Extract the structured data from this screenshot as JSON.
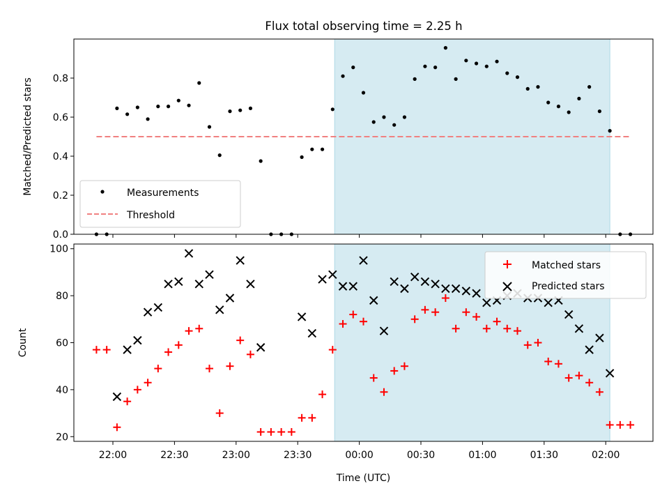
{
  "title": "Flux total observing time = 2.25 h",
  "chart_data": [
    {
      "type": "scatter",
      "panel": "top",
      "ylabel": "Matched/Predicted stars",
      "ylim": [
        0,
        1.0
      ],
      "yticks": [
        0.0,
        0.2,
        0.4,
        0.6,
        0.8
      ],
      "ytick_labels": [
        "0.0",
        "0.2",
        "0.4",
        "0.6",
        "0.8"
      ],
      "legend_position": "lower-left",
      "shaded_interval": [
        "23:48",
        "02:02"
      ],
      "shaded_color": "#add8e6",
      "series": [
        {
          "name": "Measurements",
          "marker": "dot",
          "color": "#000000",
          "x": [
            "21:52",
            "21:57",
            "22:02",
            "22:07",
            "22:12",
            "22:17",
            "22:22",
            "22:27",
            "22:32",
            "22:37",
            "22:42",
            "22:47",
            "22:52",
            "22:57",
            "23:02",
            "23:07",
            "23:12",
            "23:17",
            "23:22",
            "23:27",
            "23:32",
            "23:37",
            "23:42",
            "23:47",
            "23:52",
            "23:57",
            "00:02",
            "00:07",
            "00:12",
            "00:17",
            "00:22",
            "00:27",
            "00:32",
            "00:37",
            "00:42",
            "00:47",
            "00:52",
            "00:57",
            "01:02",
            "01:07",
            "01:12",
            "01:17",
            "01:22",
            "01:27",
            "01:32",
            "01:37",
            "01:42",
            "01:47",
            "01:52",
            "01:57",
            "02:02",
            "02:07",
            "02:12"
          ],
          "y": [
            0.0,
            0.0,
            0.645,
            0.615,
            0.65,
            0.59,
            0.655,
            0.655,
            0.685,
            0.66,
            0.775,
            0.55,
            0.405,
            0.63,
            0.635,
            0.645,
            0.375,
            0.0,
            0.0,
            0.0,
            0.395,
            0.435,
            0.435,
            0.64,
            0.81,
            0.855,
            0.725,
            0.575,
            0.6,
            0.56,
            0.6,
            0.795,
            0.86,
            0.855,
            0.955,
            0.795,
            0.89,
            0.875,
            0.86,
            0.885,
            0.825,
            0.805,
            0.745,
            0.755,
            0.675,
            0.655,
            0.625,
            0.695,
            0.755,
            0.63,
            0.53,
            0.0,
            0.0
          ]
        },
        {
          "name": "Threshold",
          "line_style": "dashed",
          "color": "#f08080",
          "x": [
            "21:52",
            "02:12"
          ],
          "y": [
            0.5,
            0.5
          ]
        }
      ]
    },
    {
      "type": "scatter",
      "panel": "bottom",
      "ylabel": "Count",
      "xlabel": "Time (UTC)",
      "ylim": [
        18,
        102
      ],
      "yticks": [
        20,
        40,
        60,
        80,
        100
      ],
      "ytick_labels": [
        "20",
        "40",
        "60",
        "80",
        "100"
      ],
      "xticks": [
        "22:00",
        "22:30",
        "23:00",
        "23:30",
        "00:00",
        "00:30",
        "01:00",
        "01:30",
        "02:00"
      ],
      "xtick_labels": [
        "22:00",
        "22:30",
        "23:00",
        "23:30",
        "00:00",
        "00:30",
        "01:00",
        "01:30",
        "02:00"
      ],
      "legend_position": "upper-right",
      "shaded_interval": [
        "23:48",
        "02:02"
      ],
      "shaded_color": "#add8e6",
      "series": [
        {
          "name": "Matched stars",
          "marker": "plus",
          "color": "#ff0000",
          "x": [
            "21:52",
            "21:57",
            "22:02",
            "22:07",
            "22:12",
            "22:17",
            "22:22",
            "22:27",
            "22:32",
            "22:37",
            "22:42",
            "22:47",
            "22:52",
            "22:57",
            "23:02",
            "23:07",
            "23:12",
            "23:17",
            "23:22",
            "23:27",
            "23:32",
            "23:37",
            "23:42",
            "23:47",
            "23:52",
            "23:57",
            "00:02",
            "00:07",
            "00:12",
            "00:17",
            "00:22",
            "00:27",
            "00:32",
            "00:37",
            "00:42",
            "00:47",
            "00:52",
            "00:57",
            "01:02",
            "01:07",
            "01:12",
            "01:17",
            "01:22",
            "01:27",
            "01:32",
            "01:37",
            "01:42",
            "01:47",
            "01:52",
            "01:57",
            "02:02",
            "02:07",
            "02:12"
          ],
          "y": [
            57,
            57,
            24,
            35,
            40,
            43,
            49,
            56,
            59,
            65,
            66,
            49,
            30,
            50,
            61,
            55,
            22,
            22,
            22,
            22,
            28,
            28,
            38,
            57,
            68,
            72,
            69,
            45,
            39,
            48,
            50,
            70,
            74,
            73,
            79,
            66,
            73,
            71,
            66,
            69,
            66,
            65,
            59,
            60,
            52,
            51,
            45,
            46,
            43,
            39,
            25,
            25,
            25
          ]
        },
        {
          "name": "Predicted stars",
          "marker": "x",
          "color": "#000000",
          "x": [
            "22:02",
            "22:07",
            "22:12",
            "22:17",
            "22:22",
            "22:27",
            "22:32",
            "22:37",
            "22:42",
            "22:47",
            "22:52",
            "22:57",
            "23:02",
            "23:07",
            "23:12",
            "23:32",
            "23:37",
            "23:42",
            "23:47",
            "23:52",
            "23:57",
            "00:02",
            "00:07",
            "00:12",
            "00:17",
            "00:22",
            "00:27",
            "00:32",
            "00:37",
            "00:42",
            "00:47",
            "00:52",
            "00:57",
            "01:02",
            "01:07",
            "01:12",
            "01:17",
            "01:22",
            "01:27",
            "01:32",
            "01:37",
            "01:42",
            "01:47",
            "01:52",
            "01:57",
            "02:02"
          ],
          "y": [
            37,
            57,
            61,
            73,
            75,
            85,
            86,
            98,
            85,
            89,
            74,
            79,
            95,
            85,
            58,
            71,
            64,
            87,
            89,
            84,
            84,
            95,
            78,
            65,
            86,
            83,
            88,
            86,
            85,
            83,
            83,
            82,
            81,
            77,
            78,
            80,
            81,
            79,
            79,
            77,
            78,
            72,
            66,
            57,
            62,
            47
          ]
        }
      ]
    }
  ]
}
